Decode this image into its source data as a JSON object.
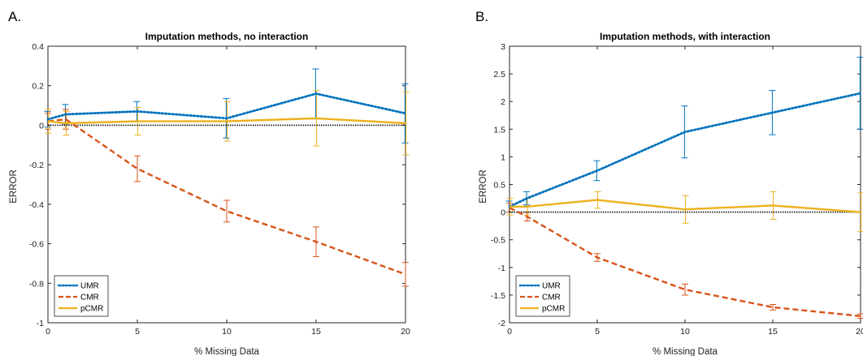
{
  "chart_data": [
    {
      "panel_label": "A.",
      "type": "line",
      "title": "Imputation methods, no interaction",
      "xlabel": "% Missing Data",
      "ylabel": "ERROR",
      "xlim": [
        0,
        20
      ],
      "ylim": [
        -1,
        0.4
      ],
      "xticks": [
        "0",
        "5",
        "10",
        "15",
        "20"
      ],
      "yticks": [
        "-1",
        "-0.8",
        "-0.6",
        "-0.4",
        "-0.2",
        "0",
        "0.2",
        "0.4"
      ],
      "grid": false,
      "legend_position": "bottom-left",
      "x": [
        0,
        1,
        5,
        10,
        15,
        20
      ],
      "series": [
        {
          "name": "UMR",
          "color": "#0072BD",
          "style": "dotted",
          "values": [
            0.03,
            0.055,
            0.07,
            0.035,
            0.16,
            0.06
          ],
          "errors": [
            0.04,
            0.05,
            0.05,
            0.1,
            0.125,
            0.15
          ]
        },
        {
          "name": "CMR",
          "color": "#D95319",
          "style": "dashed",
          "values": [
            0.02,
            0.03,
            -0.22,
            -0.435,
            -0.59,
            -0.755
          ],
          "errors": [
            0.04,
            0.05,
            0.065,
            0.055,
            0.075,
            0.06
          ]
        },
        {
          "name": "pCMR",
          "color": "#EDB120",
          "style": "solid",
          "values": [
            0.02,
            0.01,
            0.02,
            0.02,
            0.035,
            0.01
          ],
          "errors": [
            0.06,
            0.06,
            0.07,
            0.1,
            0.14,
            0.16
          ]
        }
      ],
      "reference_line": {
        "y": 0,
        "color": "#000000"
      }
    },
    {
      "panel_label": "B.",
      "type": "line",
      "title": "Imputation methods, with interaction",
      "xlabel": "% Missing Data",
      "ylabel": "ERROR",
      "xlim": [
        0,
        20
      ],
      "ylim": [
        -2,
        3
      ],
      "xticks": [
        "0",
        "5",
        "10",
        "15",
        "20"
      ],
      "yticks": [
        "-2",
        "-1.5",
        "-1",
        "-0.5",
        "0",
        "0.5",
        "1",
        "1.5",
        "2",
        "2.5",
        "3"
      ],
      "grid": false,
      "legend_position": "bottom-left",
      "x": [
        0,
        1,
        5,
        10,
        15,
        20
      ],
      "series": [
        {
          "name": "UMR",
          "color": "#0072BD",
          "style": "dotted",
          "values": [
            0.1,
            0.25,
            0.75,
            1.45,
            1.8,
            2.15
          ],
          "errors": [
            0.1,
            0.12,
            0.18,
            0.47,
            0.4,
            0.65
          ]
        },
        {
          "name": "CMR",
          "color": "#D95319",
          "style": "dashed",
          "values": [
            0.08,
            -0.08,
            -0.82,
            -1.4,
            -1.72,
            -1.88
          ],
          "errors": [
            0.08,
            0.08,
            0.07,
            0.1,
            0.05,
            0.04
          ]
        },
        {
          "name": "pCMR",
          "color": "#EDB120",
          "style": "solid",
          "values": [
            0.1,
            0.1,
            0.22,
            0.05,
            0.12,
            0.0
          ],
          "errors": [
            0.15,
            0.15,
            0.15,
            0.25,
            0.25,
            0.35
          ]
        }
      ],
      "reference_line": {
        "y": 0,
        "color": "#000000"
      }
    }
  ]
}
